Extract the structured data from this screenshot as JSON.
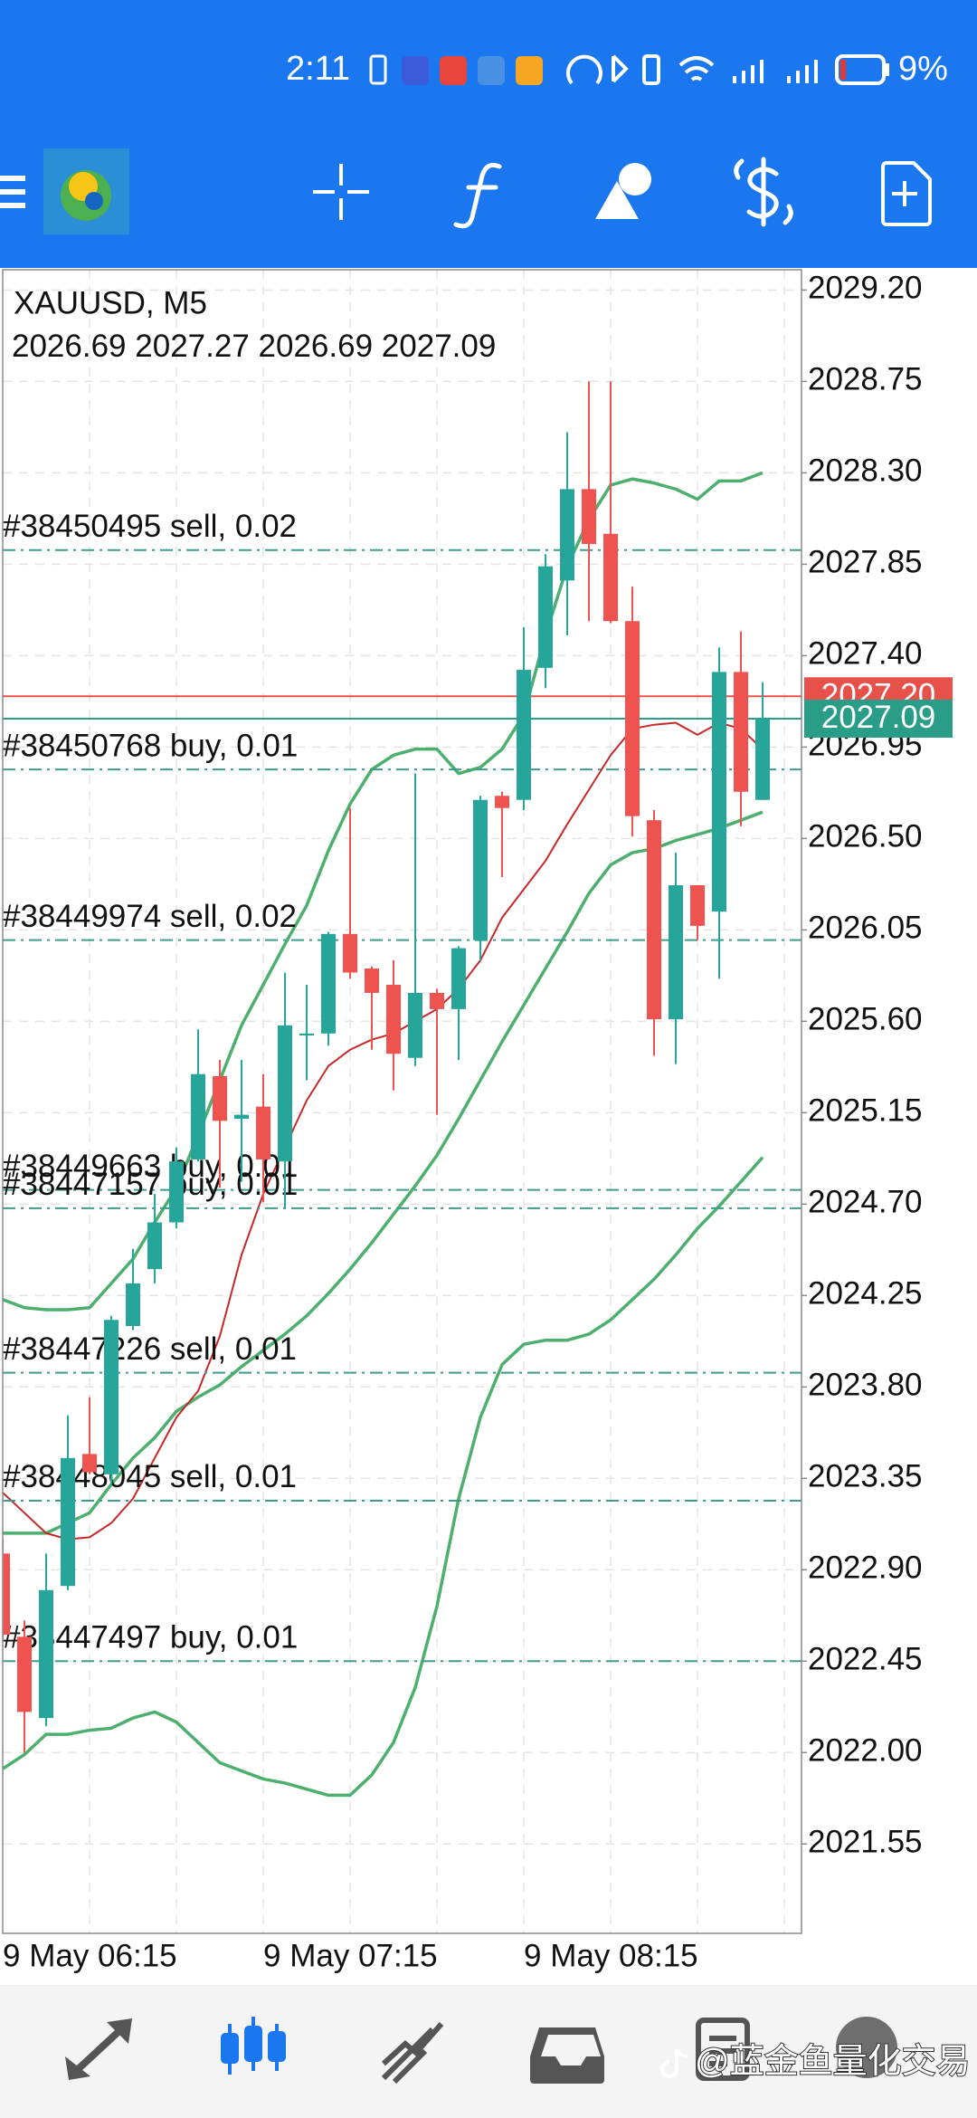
{
  "status_bar": {
    "time": "2:11",
    "battery": "9%"
  },
  "chart_data": {
    "type": "candlestick",
    "title": "XAUUSD, M5",
    "categories": [
      "9 May 06:15",
      null,
      null,
      null,
      null,
      null,
      null,
      null,
      null,
      null,
      null,
      null,
      "9 May 07:15",
      null,
      null,
      null,
      null,
      null,
      null,
      null,
      null,
      null,
      null,
      null,
      "9 May 08:15",
      null,
      null,
      null,
      null,
      null,
      null,
      null,
      null,
      null,
      null,
      null
    ],
    "open": [
      2022.98,
      2022.57,
      2022.17,
      2022.82,
      2023.47,
      2023.37,
      2024.1,
      2024.38,
      2024.61,
      2024.92,
      2025.33,
      2025.12,
      2025.18,
      2024.91,
      2025.53,
      2025.54,
      2026.03,
      2025.86,
      2025.78,
      2025.42,
      2025.74,
      2025.66,
      2026.0,
      2026.71,
      2026.69,
      2027.34,
      2027.77,
      2028.22,
      2028.0,
      2027.57,
      2026.59,
      2025.61,
      2026.27,
      2026.14,
      2027.32,
      2026.69
    ],
    "high": [
      2023.05,
      2022.65,
      2022.98,
      2023.66,
      2023.75,
      2024.15,
      2024.48,
      2024.75,
      2024.98,
      2025.56,
      2025.41,
      2025.41,
      2025.34,
      2025.84,
      2025.78,
      2026.04,
      2026.65,
      2025.87,
      2025.9,
      2026.82,
      2025.76,
      2025.97,
      2026.71,
      2026.73,
      2027.54,
      2027.9,
      2028.5,
      2028.75,
      2028.75,
      2027.74,
      2026.64,
      2026.43,
      2026.27,
      2027.44,
      2027.52,
      2027.27
    ],
    "low": [
      2022.55,
      2022.0,
      2022.13,
      2022.8,
      2023.37,
      2023.32,
      2024.08,
      2024.31,
      2024.58,
      2024.91,
      2024.78,
      2024.81,
      2024.71,
      2024.68,
      2025.31,
      2025.48,
      2025.81,
      2025.46,
      2025.26,
      2025.38,
      2025.14,
      2025.41,
      2025.9,
      2026.31,
      2026.64,
      2027.24,
      2027.5,
      2027.57,
      2027.56,
      2026.51,
      2025.43,
      2025.39,
      2026.0,
      2025.81,
      2026.56,
      2026.69
    ],
    "close": [
      2022.58,
      2022.2,
      2022.8,
      2023.45,
      2023.38,
      2024.13,
      2024.31,
      2024.61,
      2024.91,
      2025.34,
      2025.11,
      2025.14,
      2024.92,
      2025.58,
      2025.54,
      2026.03,
      2025.84,
      2025.74,
      2025.44,
      2025.74,
      2025.66,
      2025.96,
      2026.69,
      2026.65,
      2027.33,
      2027.84,
      2028.22,
      2027.95,
      2027.57,
      2026.61,
      2025.61,
      2026.27,
      2026.07,
      2027.32,
      2026.73,
      2027.09
    ],
    "up_color": "#26a69a",
    "down_color": "#ef5350",
    "series": [
      {
        "color": "#4caf6e",
        "values": [
          2024.23,
          2024.19,
          2024.18,
          2024.18,
          2024.19,
          2024.31,
          2024.43,
          2024.61,
          2024.78,
          2025.04,
          2025.31,
          2025.58,
          2025.78,
          2025.98,
          2026.17,
          2026.44,
          2026.67,
          2026.84,
          2026.91,
          2026.94,
          2026.94,
          2026.82,
          2026.85,
          2026.94,
          2027.11,
          2027.5,
          2027.84,
          2028.07,
          2028.24,
          2028.27,
          2028.25,
          2028.22,
          2028.17,
          2028.26,
          2028.26,
          2028.3
        ]
      },
      {
        "color": "#4caf6e",
        "values": [
          2023.08,
          2023.08,
          2023.08,
          2023.13,
          2023.18,
          2023.32,
          2023.45,
          2023.55,
          2023.68,
          2023.75,
          2023.81,
          2023.9,
          2023.98,
          2024.06,
          2024.15,
          2024.26,
          2024.38,
          2024.51,
          2024.65,
          2024.79,
          2024.94,
          2025.12,
          2025.31,
          2025.5,
          2025.68,
          2025.86,
          2026.04,
          2026.23,
          2026.37,
          2026.43,
          2026.45,
          2026.49,
          2026.52,
          2026.55,
          2026.59,
          2026.63
        ]
      },
      {
        "color": "#4caf6e",
        "values": [
          2021.92,
          2021.99,
          2022.09,
          2022.09,
          2022.11,
          2022.12,
          2022.17,
          2022.2,
          2022.15,
          2022.05,
          2021.95,
          2021.91,
          2021.87,
          2021.85,
          2021.82,
          2021.79,
          2021.79,
          2021.89,
          2022.05,
          2022.32,
          2022.72,
          2023.25,
          2023.65,
          2023.91,
          2024.01,
          2024.03,
          2024.03,
          2024.06,
          2024.13,
          2024.23,
          2024.33,
          2024.45,
          2024.58,
          2024.69,
          2024.81,
          2024.93
        ]
      },
      {
        "color": "#c62828",
        "values": [
          2023.28,
          2023.18,
          2023.08,
          2023.05,
          2023.06,
          2023.13,
          2023.25,
          2023.45,
          2023.65,
          2023.78,
          2024.05,
          2024.45,
          2024.75,
          2024.98,
          2025.21,
          2025.38,
          2025.46,
          2025.51,
          2025.54,
          2025.6,
          2025.66,
          2025.76,
          2025.9,
          2026.11,
          2026.25,
          2026.39,
          2026.57,
          2026.74,
          2026.91,
          2027.04,
          2027.06,
          2027.07,
          2027.01,
          2027.07,
          2027.04,
          2026.94
        ]
      }
    ],
    "level_color": "#3e9c8c",
    "levels": [
      {
        "label": "#38450495 sell, 0.02",
        "value": 2027.92
      },
      {
        "label": "#38450768 buy, 0.01",
        "value": 2026.84
      },
      {
        "label": "#38449974 sell, 0.02",
        "value": 2026.0
      },
      {
        "label": "#38449663 buy, 0.01",
        "value": 2024.77
      },
      {
        "label": "#38447157 buy, 0.01",
        "value": 2024.68
      },
      {
        "label": "#38447226 sell, 0.01",
        "value": 2023.87
      },
      {
        "label": "#38448045 sell, 0.01",
        "value": 2023.24
      },
      {
        "label": "#38447497 buy, 0.01",
        "value": 2022.45
      }
    ],
    "price_lines": [
      {
        "value": 2027.2,
        "label": "2027.20",
        "color": "#e8504a"
      },
      {
        "value": 2027.09,
        "color": "#2a9d88"
      }
    ],
    "ylim": [
      2021.11,
      2029.3
    ],
    "yticks": [
      {
        "value": 2029.2,
        "label": "2029.20"
      },
      2028.75,
      {
        "value": 2028.3,
        "label": "2028.30"
      },
      2027.85,
      {
        "value": 2027.4,
        "label": "2027.40"
      },
      2026.95,
      {
        "value": 2026.5,
        "label": "2026.50"
      },
      2026.05,
      {
        "value": 2025.6,
        "label": "2025.60"
      },
      2025.15,
      {
        "value": 2024.7,
        "label": "2024.70"
      },
      2024.25,
      {
        "value": 2023.8,
        "label": "2023.80"
      },
      2023.35,
      {
        "value": 2022.9,
        "label": "2022.90"
      },
      2022.45,
      {
        "value": 2022,
        "label": "2022.00"
      },
      2021.55
    ],
    "grid": true
  },
  "watermark": "@蓝金鱼量化交易"
}
